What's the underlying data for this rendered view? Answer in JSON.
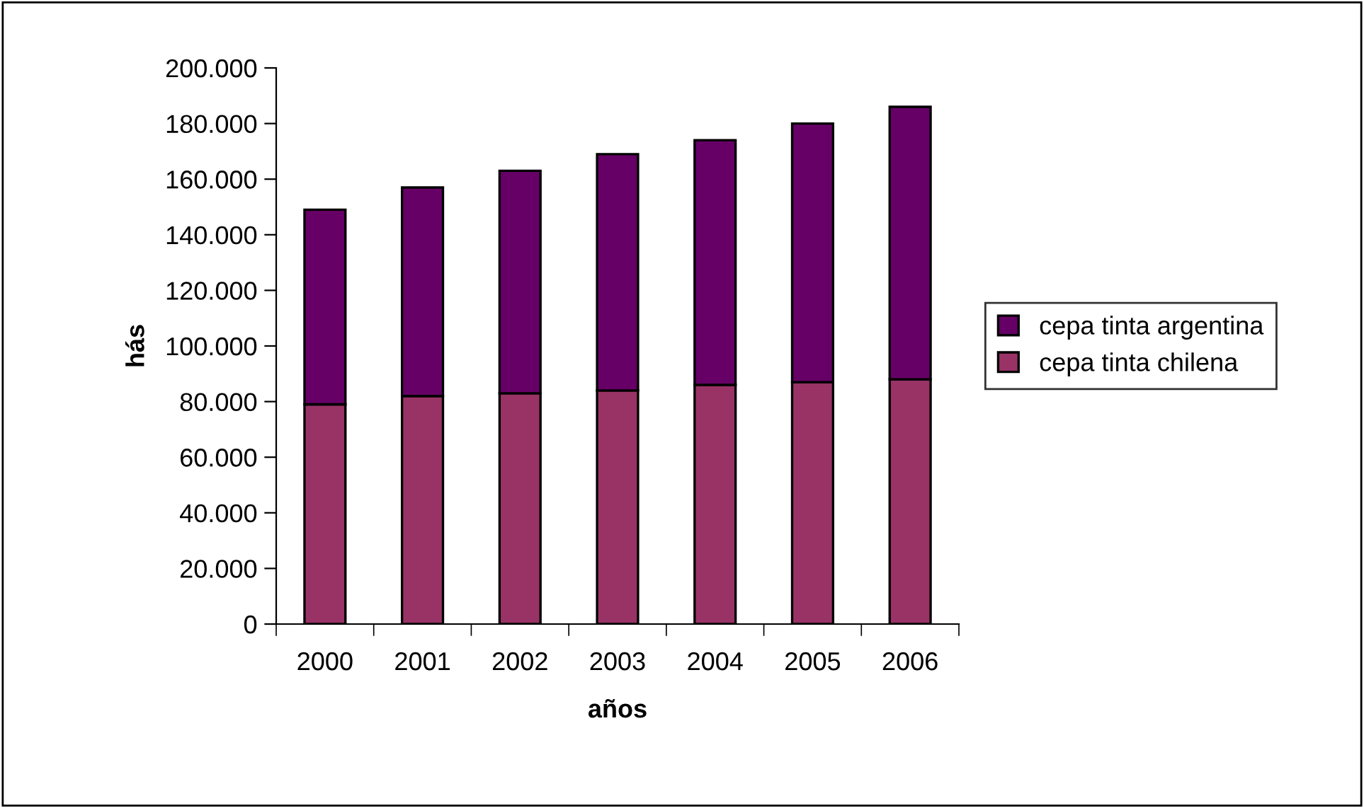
{
  "chart_data": {
    "type": "bar",
    "stacked": true,
    "xlabel": "años",
    "ylabel": "hás",
    "categories": [
      "2000",
      "2001",
      "2002",
      "2003",
      "2004",
      "2005",
      "2006"
    ],
    "series": [
      {
        "name": "cepa tinta chilena",
        "color": "#993366",
        "values": [
          79000,
          82000,
          83000,
          84000,
          86000,
          87000,
          88000
        ]
      },
      {
        "name": "cepa tinta argentina",
        "color": "#660066",
        "values": [
          70000,
          75000,
          80000,
          85000,
          88000,
          93000,
          98000
        ]
      }
    ],
    "ylim": [
      0,
      200000
    ],
    "yticks": [
      0,
      {
        "value": 20000,
        "label": "20.000"
      },
      {
        "value": 40000,
        "label": "40.000"
      },
      {
        "value": 60000,
        "label": "60.000"
      },
      {
        "value": 80000,
        "label": "80.000"
      },
      {
        "value": 100000,
        "label": "100.000"
      },
      {
        "value": 120000,
        "label": "120.000"
      },
      {
        "value": 140000,
        "label": "140.000"
      },
      {
        "value": 160000,
        "label": "160.000"
      },
      {
        "value": 180000,
        "label": "180.000"
      },
      {
        "value": 200000,
        "label": "200.000"
      }
    ],
    "grid": false,
    "legend": "right"
  }
}
